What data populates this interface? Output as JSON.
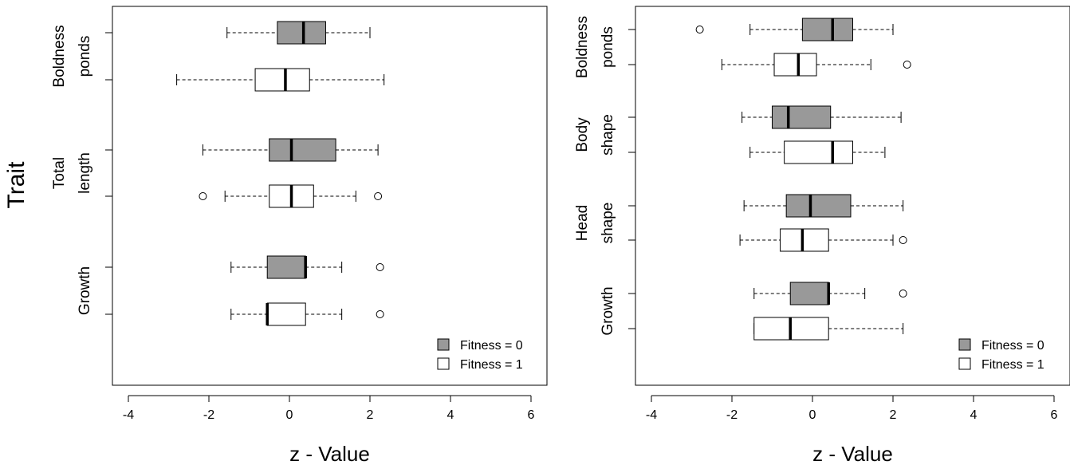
{
  "figure": {
    "ylabel": "Trait",
    "fill_colors": {
      "Fitness = 0": "#999999",
      "Fitness = 1": "#ffffff"
    }
  },
  "chart_data": [
    {
      "type": "boxplot",
      "xlabel": "z - Value",
      "xlim": [
        -4.5,
        6.5
      ],
      "xticks": [
        -4,
        -2,
        0,
        2,
        4,
        6
      ],
      "legend": {
        "position": "bottom-right",
        "entries": [
          "Fitness = 0",
          "Fitness = 1"
        ]
      },
      "groups": [
        {
          "label_lines": [
            "Boldness",
            "ponds"
          ],
          "boxes": [
            {
              "series": "Fitness = 0",
              "whisker_low": -1.55,
              "q1": -0.3,
              "median": 0.35,
              "q3": 0.9,
              "whisker_high": 2.0,
              "outliers": []
            },
            {
              "series": "Fitness = 1",
              "whisker_low": -2.8,
              "q1": -0.85,
              "median": -0.1,
              "q3": 0.5,
              "whisker_high": 2.35,
              "outliers": []
            }
          ]
        },
        {
          "label_lines": [
            "Total",
            "length"
          ],
          "boxes": [
            {
              "series": "Fitness = 0",
              "whisker_low": -2.15,
              "q1": -0.5,
              "median": 0.05,
              "q3": 1.15,
              "whisker_high": 2.2,
              "outliers": []
            },
            {
              "series": "Fitness = 1",
              "whisker_low": -1.6,
              "q1": -0.5,
              "median": 0.05,
              "q3": 0.6,
              "whisker_high": 1.65,
              "outliers": [
                -2.15,
                2.2
              ]
            }
          ]
        },
        {
          "label_lines": [
            "Growth"
          ],
          "boxes": [
            {
              "series": "Fitness = 0",
              "whisker_low": -1.45,
              "q1": -0.55,
              "median": 0.4,
              "q3": 0.4,
              "whisker_high": 1.3,
              "outliers": [
                2.25
              ]
            },
            {
              "series": "Fitness = 1",
              "whisker_low": -1.45,
              "q1": -0.55,
              "median": -0.55,
              "q3": 0.4,
              "whisker_high": 1.3,
              "outliers": [
                2.25
              ]
            }
          ]
        }
      ]
    },
    {
      "type": "boxplot",
      "xlabel": "z - Value",
      "xlim": [
        -4.5,
        6.5
      ],
      "xticks": [
        -4,
        -2,
        0,
        2,
        4,
        6
      ],
      "legend": {
        "position": "bottom-right",
        "entries": [
          "Fitness = 0",
          "Fitness = 1"
        ]
      },
      "groups": [
        {
          "label_lines": [
            "Boldness",
            "ponds"
          ],
          "boxes": [
            {
              "series": "Fitness = 0",
              "whisker_low": -1.55,
              "q1": -0.25,
              "median": 0.5,
              "q3": 1.0,
              "whisker_high": 2.0,
              "outliers": [
                -2.8
              ]
            },
            {
              "series": "Fitness = 1",
              "whisker_low": -2.25,
              "q1": -0.95,
              "median": -0.35,
              "q3": 0.1,
              "whisker_high": 1.45,
              "outliers": [
                2.35
              ]
            }
          ]
        },
        {
          "label_lines": [
            "Body",
            "shape"
          ],
          "boxes": [
            {
              "series": "Fitness = 0",
              "whisker_low": -1.75,
              "q1": -1.0,
              "median": -0.6,
              "q3": 0.45,
              "whisker_high": 2.2,
              "outliers": []
            },
            {
              "series": "Fitness = 1",
              "whisker_low": -1.55,
              "q1": -0.7,
              "median": 0.5,
              "q3": 1.0,
              "whisker_high": 1.8,
              "outliers": []
            }
          ]
        },
        {
          "label_lines": [
            "Head",
            "shape"
          ],
          "boxes": [
            {
              "series": "Fitness = 0",
              "whisker_low": -1.7,
              "q1": -0.65,
              "median": -0.05,
              "q3": 0.95,
              "whisker_high": 2.25,
              "outliers": []
            },
            {
              "series": "Fitness = 1",
              "whisker_low": -1.8,
              "q1": -0.8,
              "median": -0.25,
              "q3": 0.4,
              "whisker_high": 2.0,
              "outliers": [
                2.25
              ]
            }
          ]
        },
        {
          "label_lines": [
            "Growth"
          ],
          "boxes": [
            {
              "series": "Fitness = 0",
              "whisker_low": -1.45,
              "q1": -0.55,
              "median": 0.4,
              "q3": 0.4,
              "whisker_high": 1.3,
              "outliers": [
                2.25
              ]
            },
            {
              "series": "Fitness = 1",
              "whisker_low": -1.45,
              "q1": -1.45,
              "median": -0.55,
              "q3": 0.4,
              "whisker_high": 2.25,
              "outliers": []
            }
          ]
        }
      ]
    }
  ]
}
